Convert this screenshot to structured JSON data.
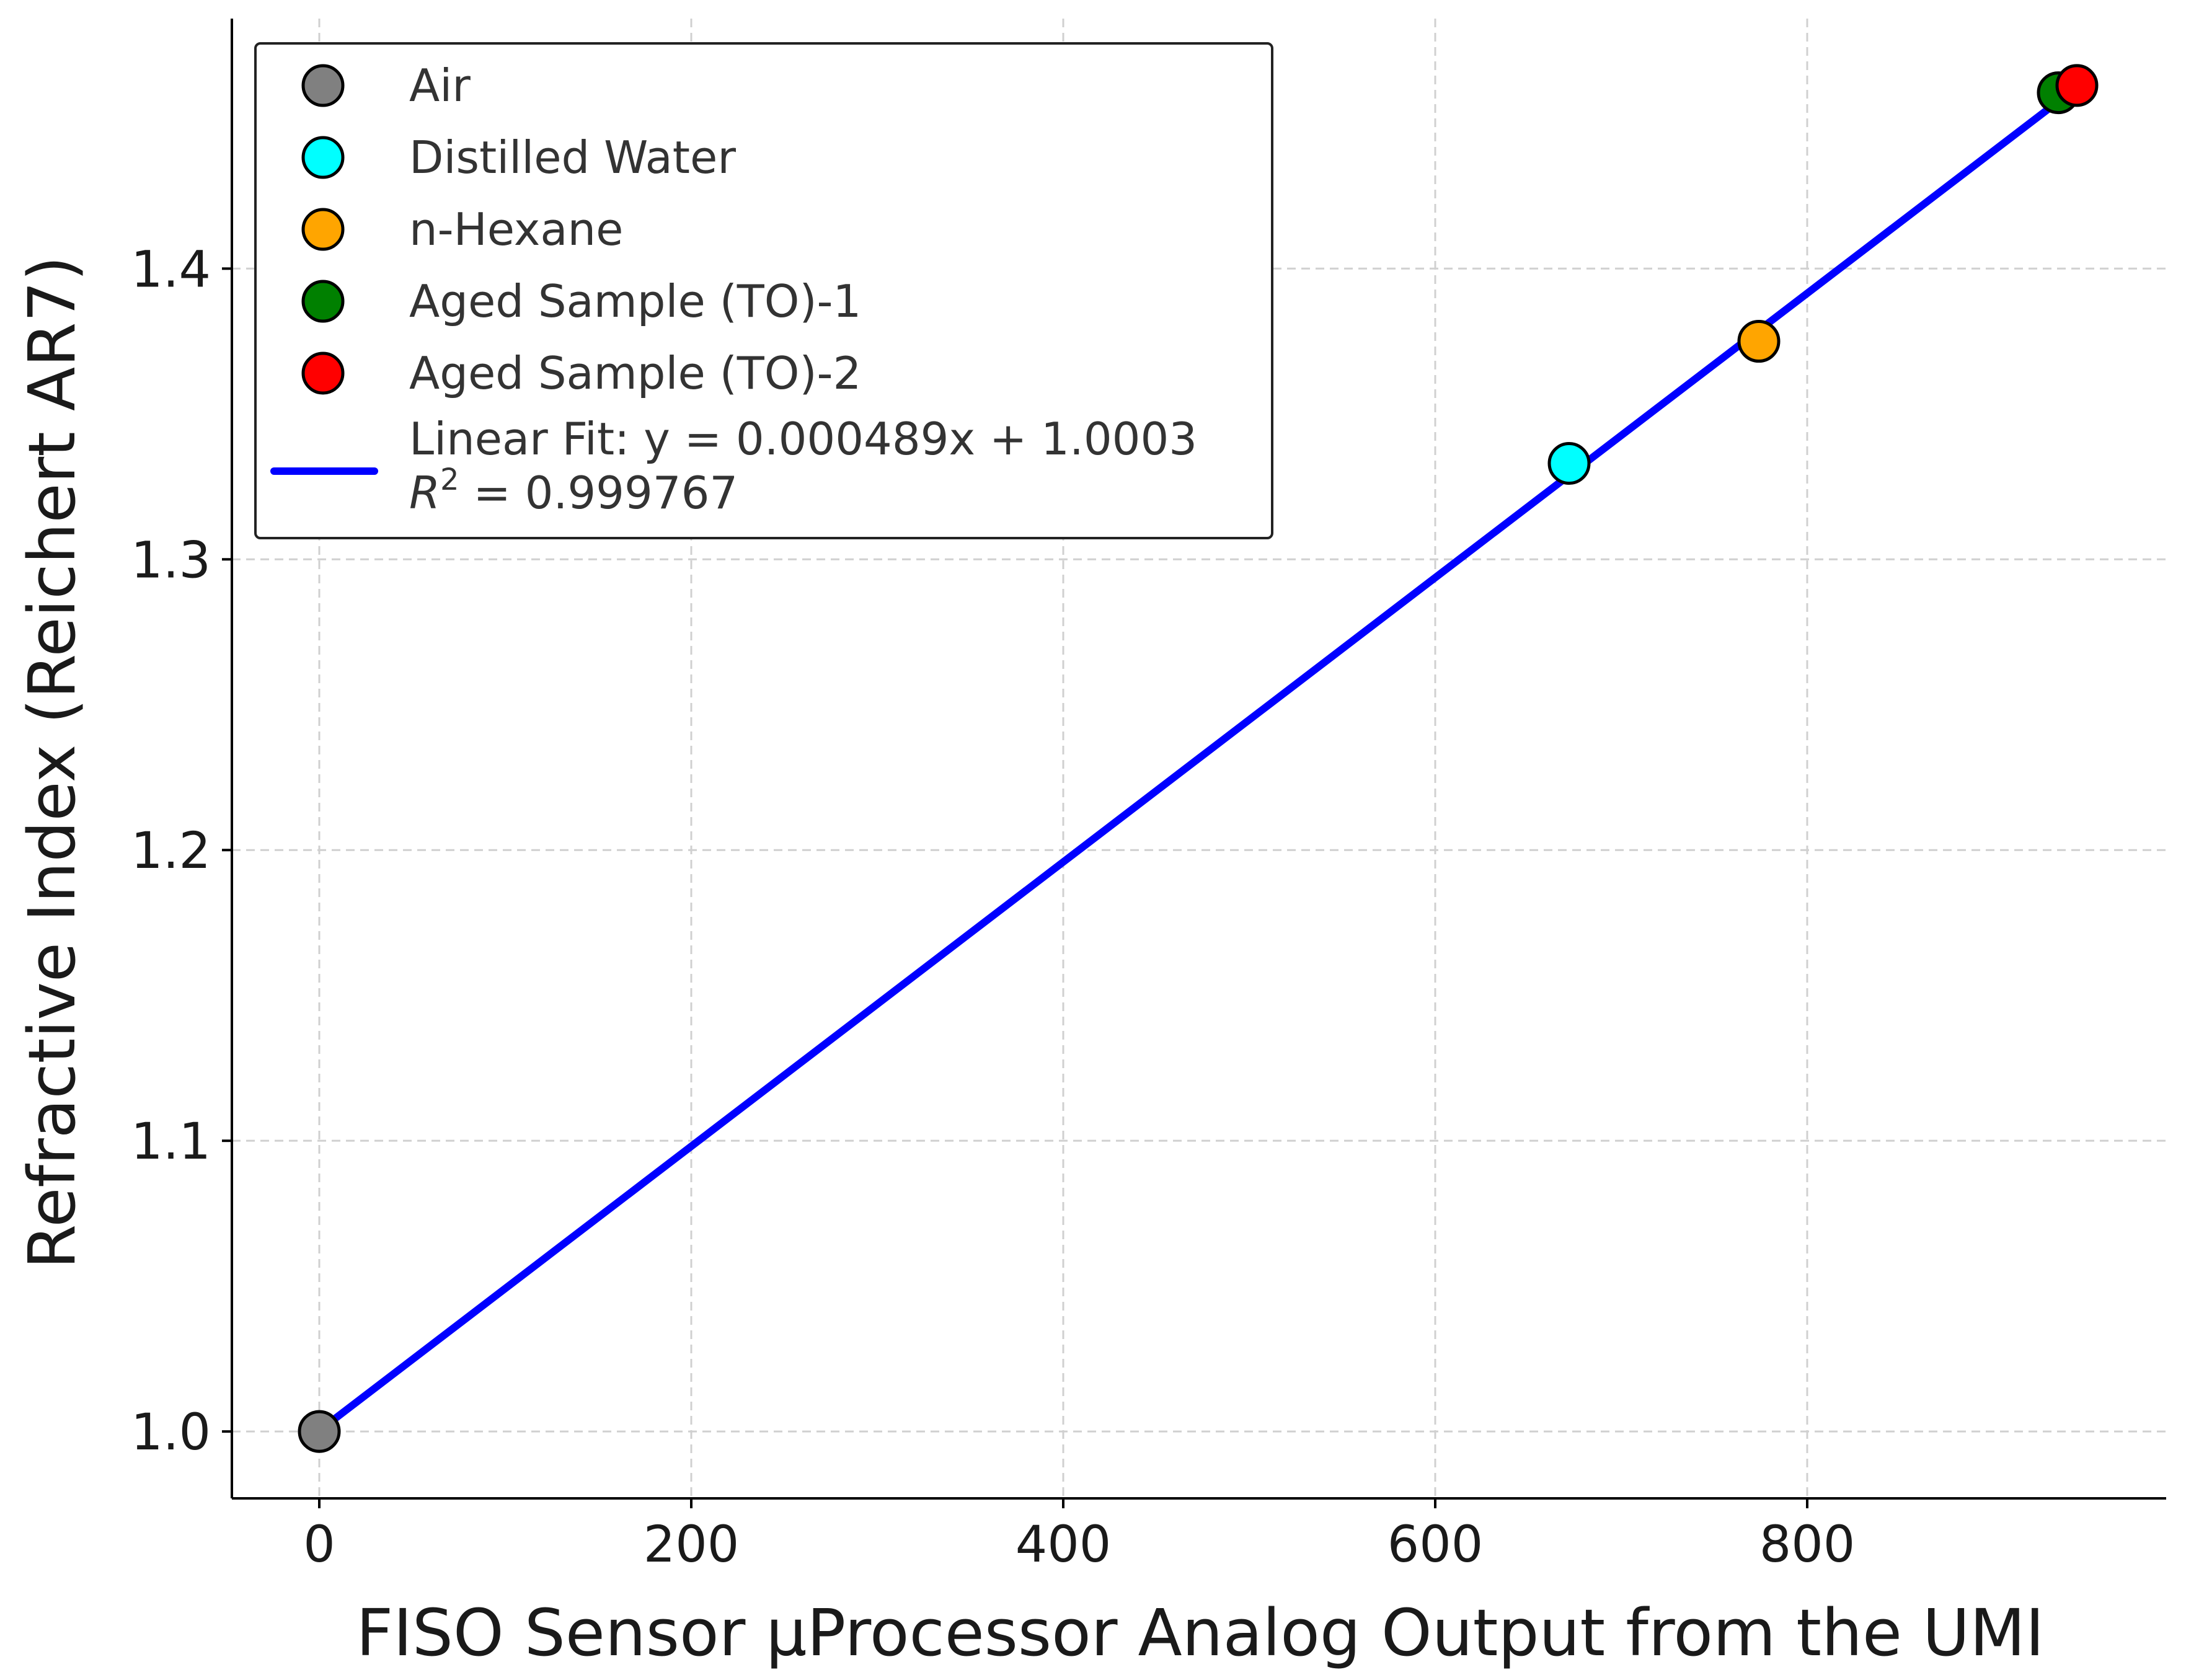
{
  "chart_data": {
    "type": "scatter",
    "xlabel": "FISO Sensor µProcessor Analog Output from the UMI",
    "ylabel": "Refractive Index (Reichert AR7)",
    "xlim": [
      -47,
      993
    ],
    "ylim": [
      0.977,
      1.486
    ],
    "x_ticks": [
      0,
      200,
      400,
      600,
      800
    ],
    "y_ticks": [
      1.0,
      1.1,
      1.2,
      1.3,
      1.4
    ],
    "x_tick_labels": [
      "0",
      "200",
      "400",
      "600",
      "800"
    ],
    "y_tick_labels": [
      "1.0",
      "1.1",
      "1.2",
      "1.3",
      "1.4"
    ],
    "grid": true,
    "legend_position": "top-left",
    "series": [
      {
        "name": "Air",
        "color": "#808080",
        "points": [
          {
            "x": 0,
            "y": 1.0
          }
        ]
      },
      {
        "name": "Distilled Water",
        "color": "#00ffff",
        "points": [
          {
            "x": 672,
            "y": 1.333
          }
        ]
      },
      {
        "name": "n-Hexane",
        "color": "#ffa500",
        "points": [
          {
            "x": 774,
            "y": 1.375
          }
        ]
      },
      {
        "name": "Aged Sample (TO)-1",
        "color": "#008000",
        "points": [
          {
            "x": 935,
            "y": 1.4605
          }
        ]
      },
      {
        "name": "Aged Sample (TO)-2",
        "color": "#ff0000",
        "points": [
          {
            "x": 945,
            "y": 1.463
          }
        ]
      }
    ],
    "fit": {
      "label_line1": "Linear Fit: y = 0.000489x + 1.0003",
      "label_r_symbol": "R",
      "label_r_exponent": "2",
      "label_r_value": " = 0.999767",
      "color": "#0000ff",
      "slope": 0.000489,
      "intercept": 1.0003,
      "x_range": [
        0,
        945
      ]
    }
  }
}
